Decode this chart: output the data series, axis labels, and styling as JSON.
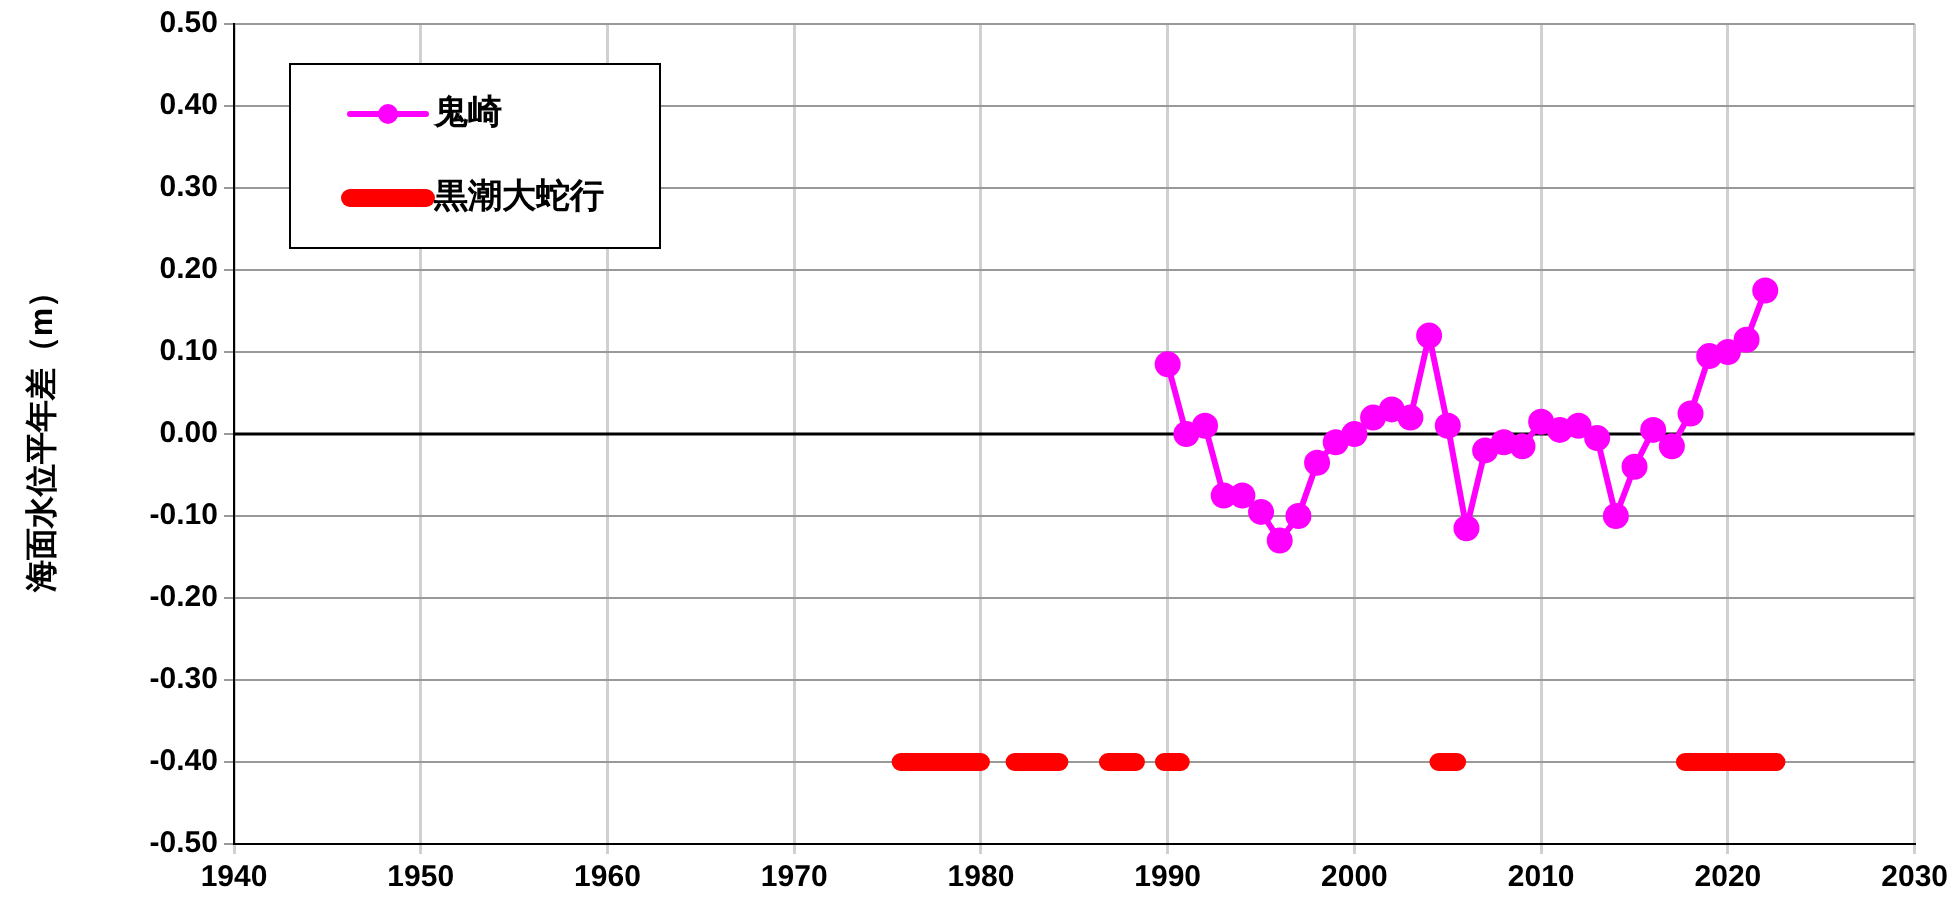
{
  "chart_data": {
    "type": "line",
    "ylabel": "海面水位平年差（m）",
    "xlim": [
      1940,
      2030
    ],
    "xticks": [
      1940,
      1950,
      1960,
      1970,
      1980,
      1990,
      2000,
      2010,
      2020,
      2030
    ],
    "ylim": [
      -0.5,
      0.5
    ],
    "yticks": [
      {
        "value": -0.5,
        "label": "-0.50"
      },
      {
        "value": -0.4,
        "label": "-0.40"
      },
      {
        "value": -0.3,
        "label": "-0.30"
      },
      {
        "value": -0.2,
        "label": "-0.20"
      },
      {
        "value": -0.1,
        "label": "-0.10"
      },
      {
        "value": 0,
        "label": "0.00"
      },
      {
        "value": 0.1,
        "label": "0.10"
      },
      {
        "value": 0.2,
        "label": "0.20"
      },
      {
        "value": 0.3,
        "label": "0.30"
      },
      {
        "value": 0.4,
        "label": "0.40"
      },
      {
        "value": 0.5,
        "label": "0.50"
      }
    ],
    "grid": true,
    "legend": "top left",
    "ref_lines": [
      {
        "axis": "y",
        "value": 0,
        "color": "#000000"
      }
    ],
    "series": [
      {
        "name": "鬼崎",
        "color": "#ff00ff",
        "marker": "circle",
        "x": [
          1990,
          1991,
          1992,
          1993,
          1994,
          1995,
          1996,
          1997,
          1998,
          1999,
          2000,
          2001,
          2002,
          2003,
          2004,
          2005,
          2006,
          2007,
          2008,
          2009,
          2010,
          2011,
          2012,
          2013,
          2014,
          2015,
          2016,
          2017,
          2018,
          2019,
          2020,
          2021,
          2022
        ],
        "values": [
          0.085,
          0.0,
          0.01,
          -0.075,
          -0.075,
          -0.095,
          -0.13,
          -0.1,
          -0.035,
          -0.01,
          0.0,
          0.02,
          0.03,
          0.02,
          0.12,
          0.01,
          -0.115,
          -0.02,
          -0.01,
          -0.015,
          0.015,
          0.005,
          0.01,
          -0.005,
          -0.1,
          -0.04,
          0.005,
          -0.015,
          0.025,
          0.095,
          0.1,
          0.115,
          0.175
        ]
      },
      {
        "name": "黒潮大蛇行",
        "color": "#ff0000",
        "marker": "none",
        "x": [
          1975.7,
          1980.0,
          1980.9,
          1981.8,
          1984.2,
          1985.5,
          1986.8,
          1988.3,
          1989.0,
          1989.8,
          1990.7,
          1997.0,
          2004.5,
          2005.5,
          2011.0,
          2017.7,
          2022.6
        ],
        "values": [
          -0.4,
          -0.4,
          null,
          -0.4,
          -0.4,
          null,
          -0.4,
          -0.4,
          null,
          -0.4,
          -0.4,
          null,
          -0.4,
          -0.4,
          null,
          -0.4,
          -0.4
        ]
      }
    ]
  }
}
